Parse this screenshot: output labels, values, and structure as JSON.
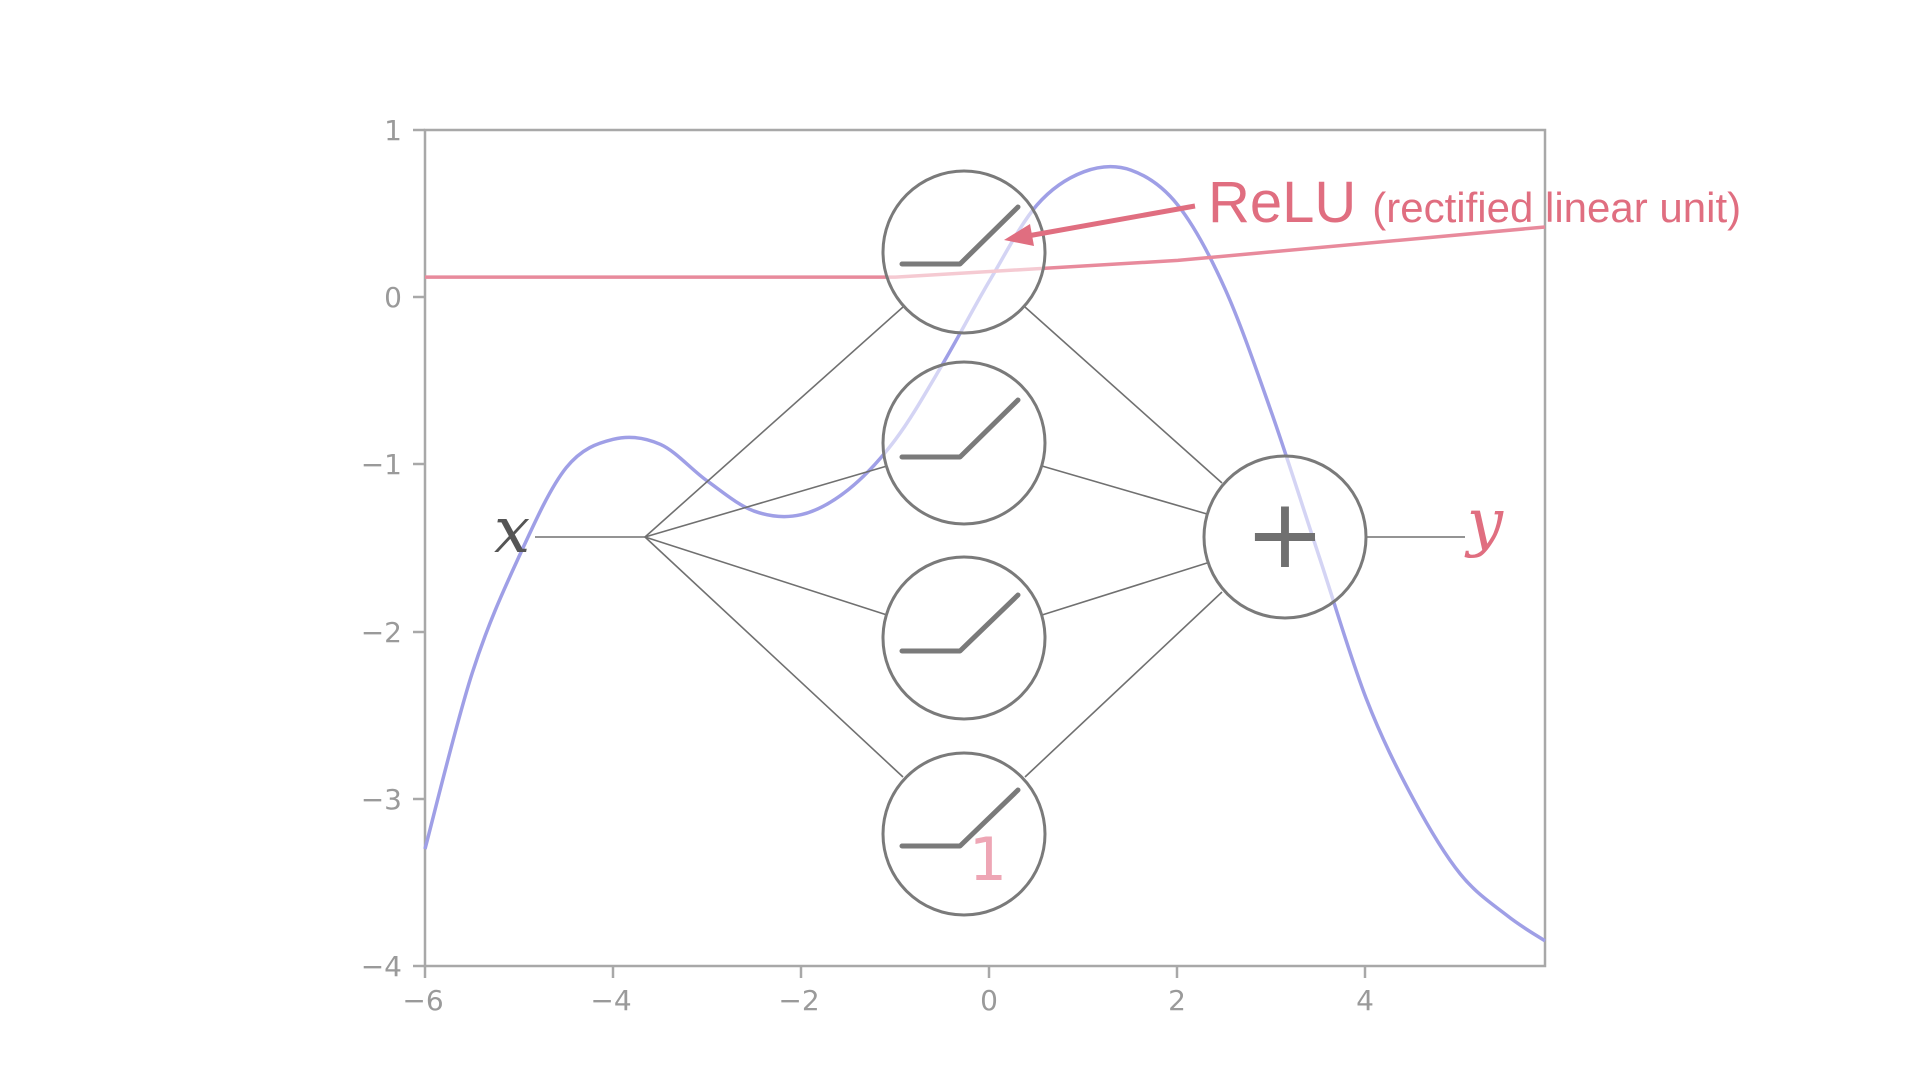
{
  "axes": {
    "x_ticks": [
      "−6",
      "−4",
      "−2",
      "0",
      "2",
      "4"
    ],
    "x_tick_values": [
      -6,
      -4,
      -2,
      0,
      2,
      4
    ],
    "y_ticks": [
      "1",
      "0",
      "−1",
      "−2",
      "−3",
      "−4"
    ],
    "y_tick_values": [
      1,
      0,
      -1,
      -2,
      -3,
      -4
    ],
    "xlim": [
      -6,
      5.9
    ],
    "ylim": [
      -4,
      1
    ]
  },
  "network": {
    "input_label": "x",
    "output_label": "y",
    "sum_symbol": "+",
    "hidden_units": 4,
    "overlay_number": "1"
  },
  "annotation": {
    "main": "ReLU",
    "detail": "(rectified linear unit)"
  },
  "colors": {
    "target_curve": "#9f9fe6",
    "relu_curve": "#e88a9c",
    "annotation": "#e06e80",
    "overlay_number": "#eea6b5",
    "network": "#707070",
    "axes": "#a8a8a8"
  },
  "curves": {
    "target": {
      "x": [
        -6,
        -5.5,
        -5,
        -4.5,
        -4,
        -3.5,
        -3,
        -2.5,
        -2,
        -1.5,
        -1,
        -0.5,
        0,
        0.5,
        1,
        1.5,
        2,
        2.5,
        3,
        3.5,
        4,
        4.5,
        5,
        5.5,
        5.9
      ],
      "y": [
        -3.3,
        -2.25,
        -1.55,
        -1.02,
        -0.85,
        -0.88,
        -1.1,
        -1.28,
        -1.3,
        -1.15,
        -0.85,
        -0.4,
        0.1,
        0.55,
        0.75,
        0.76,
        0.55,
        0.05,
        -0.7,
        -1.55,
        -2.4,
        -3.0,
        -3.45,
        -3.7,
        -3.85
      ]
    },
    "relu_fit": {
      "x": [
        -6,
        -1,
        2,
        5.9
      ],
      "y": [
        0.12,
        0.12,
        0.22,
        0.42
      ]
    }
  }
}
